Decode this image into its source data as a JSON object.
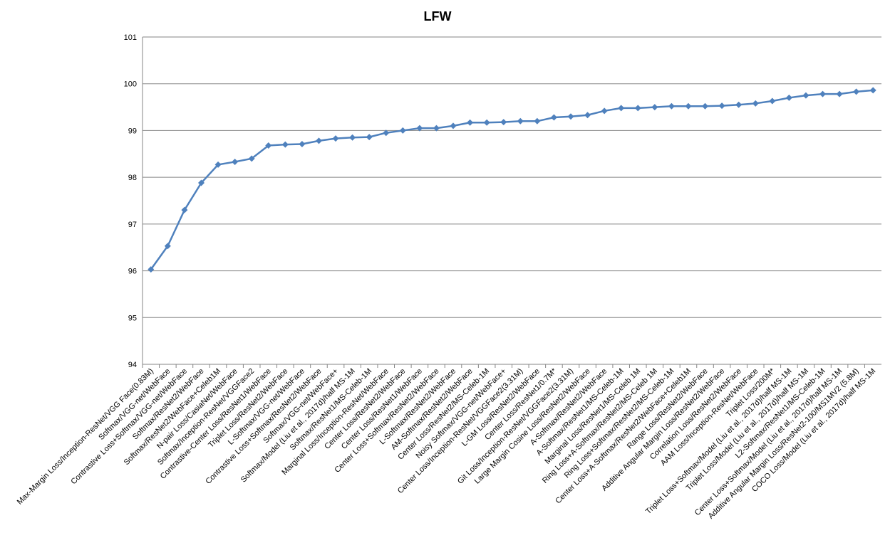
{
  "chart_data": {
    "type": "line",
    "title": "LFW",
    "categories": [
      "Max-Margin Loss/Inception-ResNet/VGG Face(0.83M)",
      "Softmax/VGG-net/WebFace",
      "Contrastive Loss+Softmax/VGG-net/WebFace",
      "Softmax/ResNet2/WebFace",
      "Softmax/ResNet2/WebFace+Celeb1M",
      "N-pair Loss/CasiaNet/WebFace",
      "Softmax/Inception-ResNet/VGGFace2",
      "Contrastive-Center Loss/ResNet1/WebFace",
      "Triplet Loss/ResNet2/WebFace",
      "L-Softmax/VGG-net/WebFace",
      "Contrastive Loss+Softmax/ResNet2/WebFace",
      "Softmax/VGG-net/WebFace+",
      "Softmax/Model (Liu et al., 2017d)/half MS-1M",
      "Softmax/ResNet1/MS-Celeb-1M",
      "Marginal Loss/Inception-ResNet/WebFace",
      "Center Loss/ResNet2/WebFace",
      "Center Loss/ResNet1/WebFace",
      "Center Loss+Softmax/ResNet2/WebFace",
      "L-Softmax/ResNet2/WebFace",
      "AM-Softmax/ResNet2/WebFace",
      "Center Loss/ResNet2/MS-Celeb-1M",
      "Noisy Softmax/VGG-net/WebFace+",
      "Center Loss/Inception-ResNet/VGGFace2(3.31M)",
      "L-GM Loss/ResNet2/WebFace",
      "Center Loss/ResNet1/0.7M*",
      "Git Loss/Inception-ResNet/VGGFace2(3.31M)",
      "Large Margin Cosine Loss/ResNet2/WebFace",
      "A-Softmax/ResNet2/WebFace",
      "A-Softmax/ResNet1/MS-Celeb-1M",
      "Marginal Loss/ResNet1/MS-Celeb 1M",
      "Ring Loss+A-Softmax/ResNet2/MS-Celeb 1M",
      "Ring Loss+Softmax/ResNet2/MS-Celeb-1M",
      "Center Loss+A-Softmax/ResNet2/WebFace+Celeb1M",
      "Range Loss/ResNet2/WebFace",
      "Additive Angular Margin Loss/ResNet2/WebFace",
      "Correlation Loss/ResNet2/WebFace",
      "AAM Loss/Inception-ResNet/WebFace",
      "Triplet Loss/200M*",
      "Triplet Loss+Softmax/Model (Liu et al., 2017d)/half MS-1M",
      "Triplet Loss/Model (Liu et al., 2017d)/half MS-1M",
      "L2-Softmax/ResNet1/MS-Celeb-1M",
      "Center Loss+Softmax/Model (Liu et al., 2017d)/half MS-1M",
      "Additive Angular Margin Loss/ResNet2-100/MS1MV2 (5.8M)",
      "COCO Loss/Model (Liu et al., 2017d)/half MS-1M"
    ],
    "series": [
      {
        "name": "LFW",
        "color": "#4f81bd",
        "values": [
          96.03,
          96.53,
          97.3,
          97.88,
          98.27,
          98.33,
          98.4,
          98.68,
          98.7,
          98.71,
          98.78,
          98.83,
          98.85,
          98.86,
          98.95,
          99.0,
          99.05,
          99.05,
          99.1,
          99.17,
          99.17,
          99.18,
          99.2,
          99.2,
          99.28,
          99.3,
          99.33,
          99.42,
          99.48,
          99.48,
          99.5,
          99.52,
          99.52,
          99.52,
          99.53,
          99.55,
          99.58,
          99.63,
          99.7,
          99.75,
          99.78,
          99.78,
          99.83,
          99.86
        ]
      }
    ],
    "ylim": [
      94,
      101
    ],
    "yticks": [
      94,
      95,
      96,
      97,
      98,
      99,
      100,
      101
    ],
    "grid": true
  }
}
